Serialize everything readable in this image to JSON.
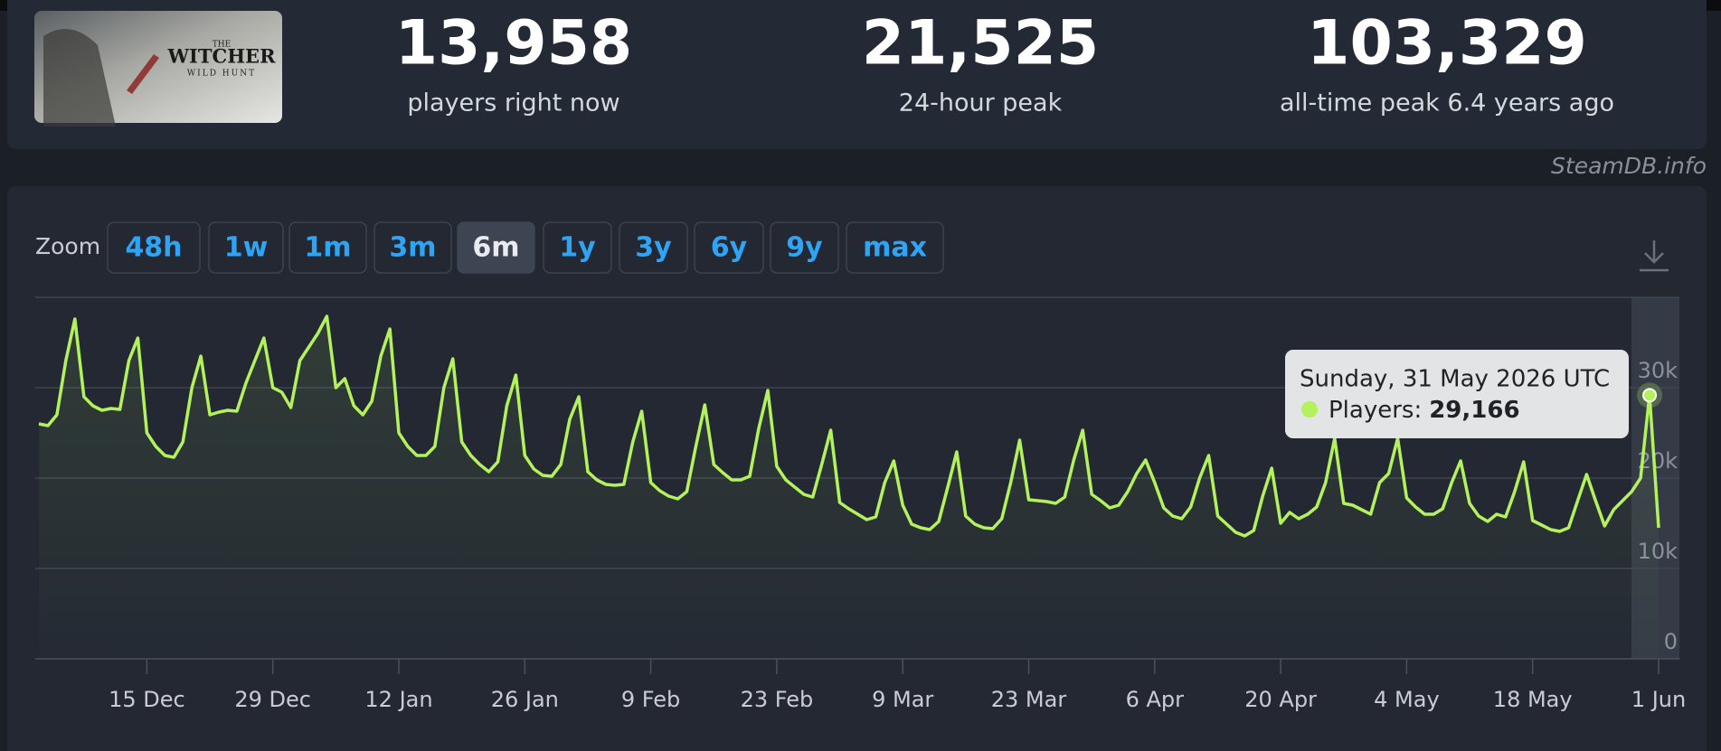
{
  "header": {
    "game_logo": [
      "THE",
      "WITCHER",
      "WILD HUNT"
    ],
    "stats": [
      {
        "value": "13,958",
        "label": "players right now"
      },
      {
        "value": "21,525",
        "label": "24-hour peak"
      },
      {
        "value": "103,329",
        "label": "all-time peak 6.4 years ago"
      }
    ]
  },
  "watermark": "SteamDB.info",
  "zoom": {
    "label": "Zoom",
    "buttons": [
      "48h",
      "1w",
      "1m",
      "3m",
      "6m",
      "1y",
      "3y",
      "6y",
      "9y",
      "max"
    ],
    "active": "6m"
  },
  "chart_data": {
    "type": "line",
    "categories": [
      null,
      null,
      null,
      null,
      null,
      null,
      null,
      null,
      null,
      null,
      null,
      null,
      "15 Dec",
      null,
      null,
      null,
      null,
      null,
      null,
      null,
      null,
      null,
      null,
      null,
      null,
      null,
      "29 Dec",
      null,
      null,
      null,
      null,
      null,
      null,
      null,
      null,
      null,
      null,
      null,
      null,
      null,
      "12 Jan",
      null,
      null,
      null,
      null,
      null,
      null,
      null,
      null,
      null,
      null,
      null,
      null,
      null,
      "26 Jan",
      null,
      null,
      null,
      null,
      null,
      null,
      null,
      null,
      null,
      null,
      null,
      null,
      null,
      "9 Feb",
      null,
      null,
      null,
      null,
      null,
      null,
      null,
      null,
      null,
      null,
      null,
      null,
      null,
      "23 Feb",
      null,
      null,
      null,
      null,
      null,
      null,
      null,
      null,
      null,
      null,
      null,
      null,
      null,
      "9 Mar",
      null,
      null,
      null,
      null,
      null,
      null,
      null,
      null,
      null,
      null,
      null,
      null,
      null,
      "23 Mar",
      null,
      null,
      null,
      null,
      null,
      null,
      null,
      null,
      null,
      null,
      null,
      null,
      null,
      "6 Apr",
      null,
      null,
      null,
      null,
      null,
      null,
      null,
      null,
      null,
      null,
      null,
      null,
      null,
      "20 Apr",
      null,
      null,
      null,
      null,
      null,
      null,
      null,
      null,
      null,
      null,
      null,
      null,
      null,
      "4 May",
      null,
      null,
      null,
      null,
      null,
      null,
      null,
      null,
      null,
      null,
      null,
      null,
      null,
      "18 May",
      null,
      null,
      null,
      null,
      null,
      null,
      null,
      null,
      null,
      null,
      null,
      null,
      null,
      "1 Jun"
    ],
    "series": [
      {
        "name": "Players",
        "color": "#b3f25c",
        "values": [
          26000,
          25800,
          27000,
          33000,
          37600,
          29000,
          28000,
          27500,
          27700,
          27600,
          33000,
          35500,
          25000,
          23500,
          22500,
          22300,
          24000,
          30000,
          33500,
          27000,
          27300,
          27500,
          27400,
          30500,
          33000,
          35500,
          30000,
          29500,
          27800,
          33000,
          34500,
          36000,
          37900,
          30000,
          31000,
          28000,
          27000,
          28500,
          33500,
          36500,
          25000,
          23500,
          22500,
          22500,
          23500,
          30000,
          33200,
          24000,
          22500,
          21500,
          20700,
          21800,
          28000,
          31400,
          22500,
          21000,
          20300,
          20200,
          21500,
          26500,
          29000,
          20700,
          19800,
          19300,
          19200,
          19300,
          24000,
          27400,
          19500,
          18600,
          18000,
          17700,
          18500,
          23500,
          28100,
          21500,
          20600,
          19800,
          19800,
          20200,
          25500,
          29700,
          21300,
          19800,
          19000,
          18200,
          17900,
          21500,
          25300,
          17300,
          16600,
          16000,
          15400,
          15700,
          19500,
          21900,
          17000,
          14900,
          14500,
          14300,
          15200,
          19000,
          22900,
          15800,
          14900,
          14500,
          14400,
          15500,
          19500,
          24200,
          17600,
          17500,
          17400,
          17200,
          17900,
          22000,
          25300,
          18200,
          17500,
          16700,
          17000,
          18500,
          20500,
          22000,
          19500,
          16700,
          15800,
          15500,
          16800,
          20000,
          22500,
          15800,
          14900,
          14000,
          13600,
          14200,
          18000,
          21100,
          15000,
          16200,
          15500,
          16000,
          16800,
          19500,
          24400,
          17200,
          17000,
          16500,
          16000,
          19500,
          20500,
          24400,
          17800,
          16800,
          16000,
          16000,
          16600,
          19500,
          21900,
          17200,
          15800,
          15200,
          16000,
          15700,
          18500,
          21800,
          15300,
          14800,
          14300,
          14100,
          14500,
          17500,
          20400,
          17500,
          14700,
          16500,
          17500,
          18500,
          20000,
          29166,
          14500
        ]
      }
    ],
    "ylim": [
      0,
      40000
    ],
    "yticks": [
      0,
      {
        "value": 10000,
        "label": "10k"
      },
      {
        "value": 20000,
        "label": "20k"
      },
      {
        "value": 30000,
        "label": "30k"
      }
    ],
    "grid": true,
    "tooltip": {
      "title": "Sunday, 31 May 2026 UTC",
      "series_label": "Players:",
      "value_label": "29,166"
    }
  }
}
